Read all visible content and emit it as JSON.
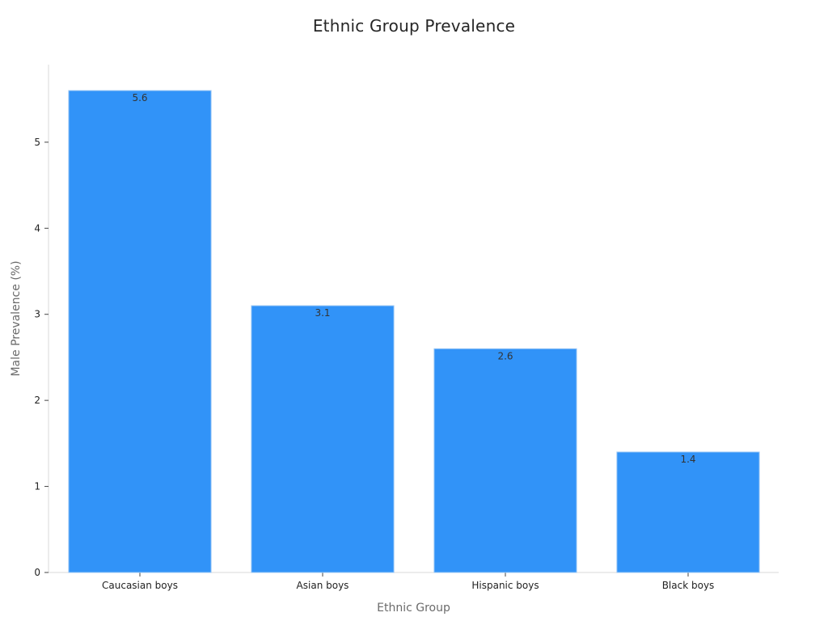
{
  "chart_data": {
    "type": "bar",
    "title": "Ethnic Group Prevalence",
    "xlabel": "Ethnic Group",
    "ylabel": "Male Prevalence (%)",
    "categories": [
      "Caucasian boys",
      "Asian boys",
      "Hispanic boys",
      "Black boys"
    ],
    "values": [
      5.6,
      3.1,
      2.6,
      1.4
    ],
    "data_labels": [
      "5.6",
      "3.1",
      "2.6",
      "1.4"
    ],
    "ylim": [
      0,
      5.6
    ],
    "yticks": [
      0,
      1,
      2,
      3,
      4,
      5
    ],
    "bar_color": "#3193f8",
    "grid": false,
    "legend": "none"
  }
}
